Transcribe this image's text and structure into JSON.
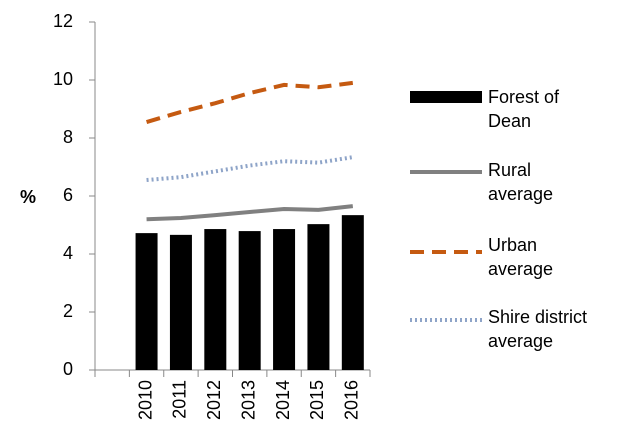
{
  "chart_data": {
    "type": "bar",
    "y_label": "%",
    "categories": [
      null,
      "2010",
      "2011",
      "2012",
      "2013",
      "2014",
      "2015",
      "2016"
    ],
    "ylim": [
      0,
      12
    ],
    "yticks": [
      0,
      2,
      4,
      6,
      8,
      10,
      12
    ],
    "series": [
      {
        "name": "Forest of Dean",
        "type": "bar",
        "color": "#000000",
        "style": "solid",
        "values": [
          null,
          4.72,
          4.66,
          4.86,
          4.79,
          4.86,
          5.03,
          5.34
        ]
      },
      {
        "name": "Rural average",
        "type": "line",
        "color": "#808080",
        "style": "solid",
        "values": [
          null,
          5.2,
          5.24,
          5.34,
          5.45,
          5.55,
          5.52,
          5.65
        ]
      },
      {
        "name": "Urban average",
        "type": "line",
        "color": "#c55a11",
        "style": "dashed",
        "values": [
          null,
          8.55,
          8.9,
          9.2,
          9.55,
          9.83,
          9.75,
          9.9
        ]
      },
      {
        "name": "Shire district average",
        "type": "line",
        "color": "#8ea4c8",
        "style": "dotted",
        "values": [
          null,
          6.55,
          6.65,
          6.85,
          7.05,
          7.2,
          7.15,
          7.34
        ]
      }
    ]
  }
}
